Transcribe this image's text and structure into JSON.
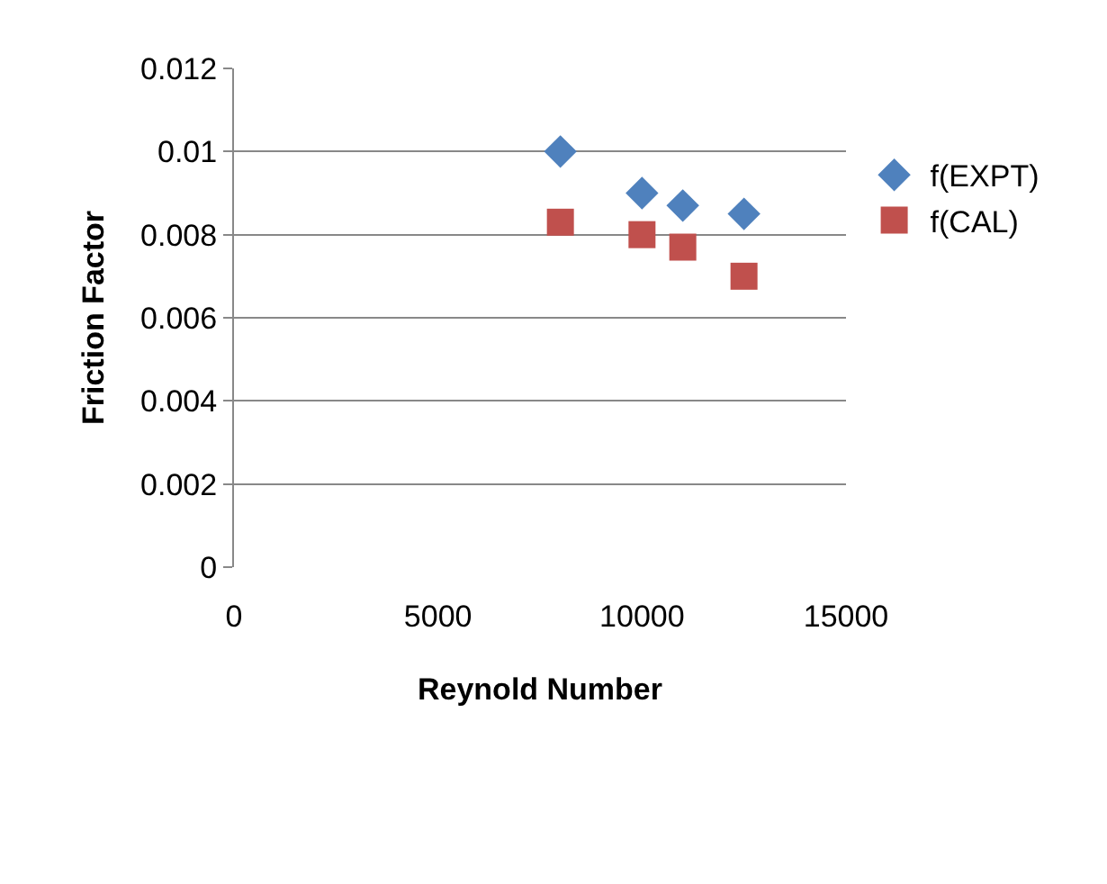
{
  "chart_data": {
    "type": "scatter",
    "xlabel": "Reynold Number",
    "ylabel": "Friction Factor",
    "xlim": [
      0,
      15000
    ],
    "xticks": [
      0,
      5000,
      10000,
      15000
    ],
    "ylim": [
      0,
      0.012
    ],
    "yticks": [
      0,
      0.002,
      0.004,
      0.006,
      0.008,
      0.01,
      0.012
    ],
    "grid": "y",
    "legend": "right",
    "series": [
      {
        "name": "f(EXPT)",
        "color": "#4f81bd",
        "marker": "diamond",
        "x": [
          8000,
          10000,
          11000,
          12500
        ],
        "values": [
          0.01,
          0.009,
          0.0087,
          0.0085
        ]
      },
      {
        "name": "f(CAL)",
        "color": "#c0504d",
        "marker": "square",
        "x": [
          8000,
          10000,
          11000,
          12500
        ],
        "values": [
          0.0083,
          0.008,
          0.0077,
          0.007
        ]
      }
    ]
  }
}
